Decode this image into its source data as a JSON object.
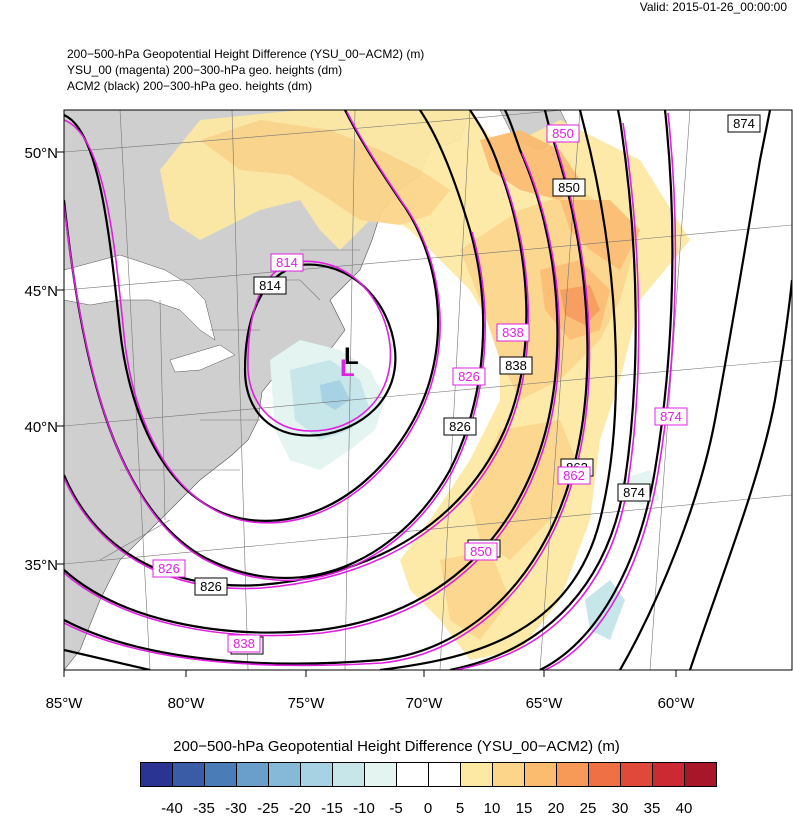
{
  "valid_time": "Valid: 2015-01-26_00:00:00",
  "titles": {
    "line1": "200−500-hPa Geopotential Height Difference (YSU_00−ACM2)   (m)",
    "line2": "YSU_00 (magenta) 200−300-hPa geo. heights   (dm)",
    "line3": "ACM2 (black) 200−300-hPa geo. heights   (dm)"
  },
  "map": {
    "lat_labels": [
      "50°N",
      "45°N",
      "40°N",
      "35°N"
    ],
    "lon_labels": [
      "85°W",
      "80°W",
      "75°W",
      "70°W",
      "65°W",
      "60°W"
    ],
    "low_symbol": "L",
    "contour_labels_black": [
      "874",
      "850",
      "814",
      "838",
      "826",
      "862",
      "874",
      "850",
      "826",
      "838"
    ],
    "contour_labels_magenta": [
      "850",
      "814",
      "838",
      "826",
      "874",
      "862",
      "850",
      "826",
      "838"
    ]
  },
  "colorbar": {
    "title": "200−500-hPa Geopotential Height Difference (YSU_00−ACM2)  (m)",
    "ticks": [
      "-40",
      "-35",
      "-30",
      "-25",
      "-20",
      "-15",
      "-10",
      "-5",
      "0",
      "5",
      "10",
      "15",
      "20",
      "25",
      "30",
      "35",
      "40"
    ],
    "colors": [
      "#2a3593",
      "#3a5ca6",
      "#4a7db8",
      "#6a9ecb",
      "#86b9d8",
      "#a7d2e3",
      "#c6e6ea",
      "#e4f4f0",
      "#ffffff",
      "#ffffff",
      "#fde9a4",
      "#fcd58a",
      "#fbbc70",
      "#f79a58",
      "#ef7045",
      "#e0483a",
      "#cc2a32",
      "#a8162a"
    ]
  }
}
